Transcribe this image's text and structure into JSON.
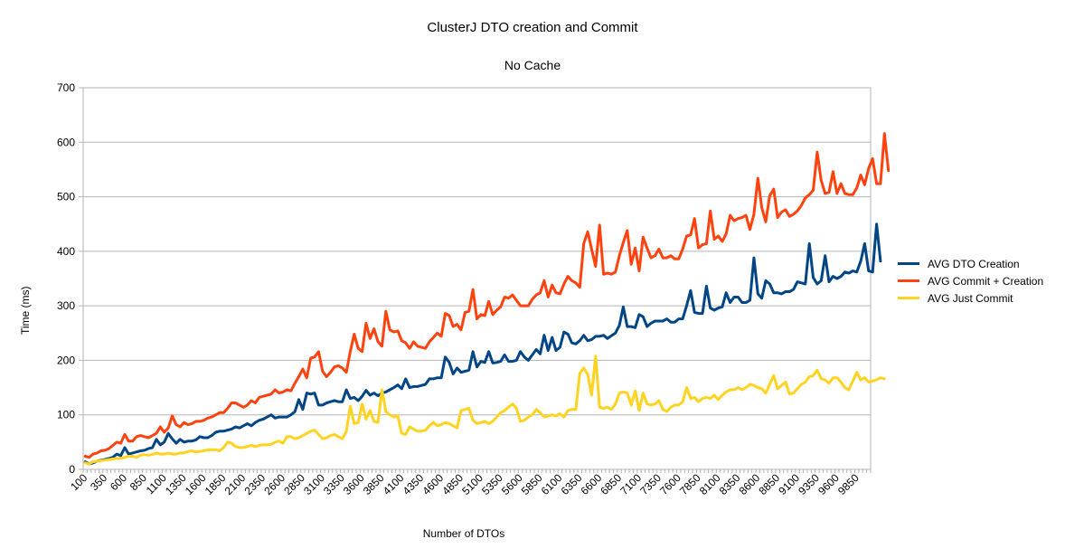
{
  "chart_data": {
    "type": "line",
    "title": "ClusterJ DTO creation and Commit",
    "subtitle": "No Cache",
    "xlabel": "Number of DTOs",
    "ylabel": "Time (ms)",
    "ylim": [
      0,
      700
    ],
    "yticks": [
      0,
      100,
      200,
      300,
      400,
      500,
      600,
      700
    ],
    "grid": "horizontal",
    "legend_position": "right",
    "x_tick_labels": [
      "100",
      "350",
      "600",
      "850",
      "1100",
      "1350",
      "1600",
      "1850",
      "2100",
      "2350",
      "2600",
      "2850",
      "3100",
      "3350",
      "3600",
      "3850",
      "4100",
      "4350",
      "4600",
      "4850",
      "5100",
      "5350",
      "5600",
      "5850",
      "6100",
      "6350",
      "6600",
      "6850",
      "7100",
      "7350",
      "7600",
      "7850",
      "8100",
      "8350",
      "8600",
      "8850",
      "9100",
      "9350",
      "9600",
      "9850"
    ],
    "x": {
      "start": 100,
      "step": 50,
      "count": 199
    },
    "series": [
      {
        "name": "AVG DTO Creation",
        "color": "#004586",
        "values": [
          14,
          10,
          12,
          15,
          17,
          18,
          20,
          22,
          28,
          25,
          40,
          28,
          30,
          32,
          34,
          35,
          38,
          40,
          55,
          45,
          50,
          66,
          56,
          48,
          55,
          50,
          52,
          52,
          54,
          60,
          58,
          58,
          62,
          68,
          70,
          70,
          72,
          74,
          78,
          76,
          80,
          84,
          80,
          86,
          90,
          92,
          96,
          100,
          94,
          96,
          96,
          96,
          100,
          106,
          128,
          110,
          140,
          138,
          140,
          118,
          118,
          122,
          124,
          126,
          124,
          124,
          146,
          130,
          132,
          126,
          134,
          145,
          136,
          140,
          135,
          140,
          142,
          146,
          150,
          155,
          148,
          166,
          150,
          152,
          152,
          154,
          156,
          166,
          166,
          168,
          168,
          206,
          196,
          175,
          186,
          178,
          180,
          182,
          216,
          188,
          198,
          196,
          216,
          195,
          196,
          198,
          210,
          198,
          198,
          200,
          216,
          206,
          200,
          210,
          220,
          212,
          246,
          218,
          242,
          218,
          224,
          252,
          248,
          232,
          230,
          236,
          246,
          236,
          238,
          244,
          244,
          246,
          240,
          245,
          250,
          264,
          298,
          262,
          262,
          260,
          284,
          280,
          262,
          268,
          272,
          272,
          272,
          276,
          270,
          270,
          276,
          276,
          300,
          328,
          288,
          286,
          286,
          336,
          296,
          292,
          296,
          298,
          324,
          306,
          316,
          316,
          306,
          306,
          310,
          388,
          322,
          314,
          346,
          340,
          324,
          324,
          322,
          326,
          326,
          330,
          344,
          342,
          340,
          414,
          352,
          340,
          346,
          392,
          344,
          354,
          350,
          354,
          362,
          360,
          364,
          362,
          382,
          414,
          364,
          362,
          450,
          382
        ]
      },
      {
        "name": "AVG Commit + Creation",
        "color": "#ff420e",
        "values": [
          24,
          22,
          28,
          30,
          34,
          35,
          38,
          44,
          50,
          48,
          64,
          52,
          52,
          60,
          62,
          60,
          58,
          62,
          66,
          78,
          68,
          76,
          98,
          82,
          78,
          86,
          82,
          84,
          88,
          88,
          90,
          94,
          96,
          100,
          104,
          104,
          112,
          122,
          122,
          118,
          114,
          118,
          126,
          122,
          132,
          134,
          136,
          138,
          146,
          140,
          142,
          146,
          144,
          158,
          170,
          184,
          168,
          204,
          206,
          216,
          180,
          170,
          178,
          188,
          190,
          186,
          178,
          216,
          248,
          222,
          216,
          268,
          240,
          258,
          234,
          226,
          290,
          256,
          252,
          254,
          236,
          232,
          222,
          234,
          226,
          224,
          222,
          234,
          242,
          250,
          244,
          286,
          282,
          262,
          266,
          256,
          288,
          290,
          330,
          276,
          284,
          282,
          308,
          284,
          292,
          298,
          316,
          314,
          320,
          310,
          300,
          300,
          300,
          312,
          320,
          324,
          346,
          316,
          338,
          324,
          322,
          340,
          354,
          346,
          342,
          334,
          414,
          436,
          404,
          372,
          448,
          358,
          360,
          358,
          362,
          392,
          416,
          438,
          376,
          406,
          364,
          426,
          406,
          388,
          392,
          404,
          388,
          388,
          392,
          386,
          386,
          404,
          428,
          430,
          460,
          406,
          412,
          414,
          474,
          422,
          428,
          418,
          432,
          466,
          456,
          460,
          462,
          466,
          440,
          468,
          534,
          480,
          454,
          502,
          514,
          462,
          472,
          476,
          464,
          468,
          474,
          484,
          498,
          504,
          512,
          582,
          530,
          506,
          508,
          546,
          506,
          524,
          506,
          504,
          504,
          516,
          540,
          522,
          552,
          570,
          524,
          524,
          616,
          548
        ]
      },
      {
        "name": "AVG Just Commit",
        "color": "#ffd320",
        "values": [
          12,
          10,
          14,
          15,
          16,
          17,
          18,
          19,
          20,
          20,
          22,
          24,
          24,
          22,
          26,
          27,
          26,
          27,
          30,
          28,
          28,
          30,
          28,
          28,
          30,
          30,
          33,
          34,
          32,
          33,
          34,
          36,
          36,
          36,
          34,
          40,
          50,
          48,
          42,
          40,
          40,
          42,
          44,
          42,
          44,
          45,
          45,
          46,
          50,
          52,
          48,
          60,
          60,
          56,
          58,
          62,
          66,
          70,
          72,
          64,
          56,
          58,
          62,
          64,
          60,
          56,
          70,
          116,
          84,
          86,
          120,
          92,
          108,
          88,
          86,
          146,
          106,
          100,
          96,
          98,
          66,
          64,
          78,
          74,
          70,
          70,
          72,
          80,
          86,
          80,
          82,
          86,
          84,
          80,
          76,
          108,
          110,
          112,
          90,
          84,
          86,
          88,
          84,
          88,
          96,
          104,
          108,
          114,
          120,
          112,
          88,
          90,
          96,
          100,
          110,
          104,
          96,
          98,
          100,
          98,
          102,
          96,
          108,
          110,
          110,
          176,
          186,
          174,
          136,
          208,
          114,
          112,
          114,
          110,
          120,
          140,
          142,
          140,
          118,
          144,
          108,
          140,
          120,
          118,
          120,
          126,
          110,
          106,
          114,
          118,
          118,
          124,
          150,
          130,
          132,
          124,
          130,
          132,
          130,
          136,
          128,
          136,
          142,
          146,
          146,
          150,
          146,
          150,
          156,
          154,
          150,
          148,
          140,
          156,
          172,
          148,
          154,
          160,
          138,
          140,
          148,
          156,
          160,
          170,
          172,
          182,
          166,
          164,
          158,
          168,
          168,
          160,
          150,
          146,
          162,
          178,
          164,
          168,
          160,
          162,
          164,
          168,
          166
        ]
      }
    ]
  }
}
